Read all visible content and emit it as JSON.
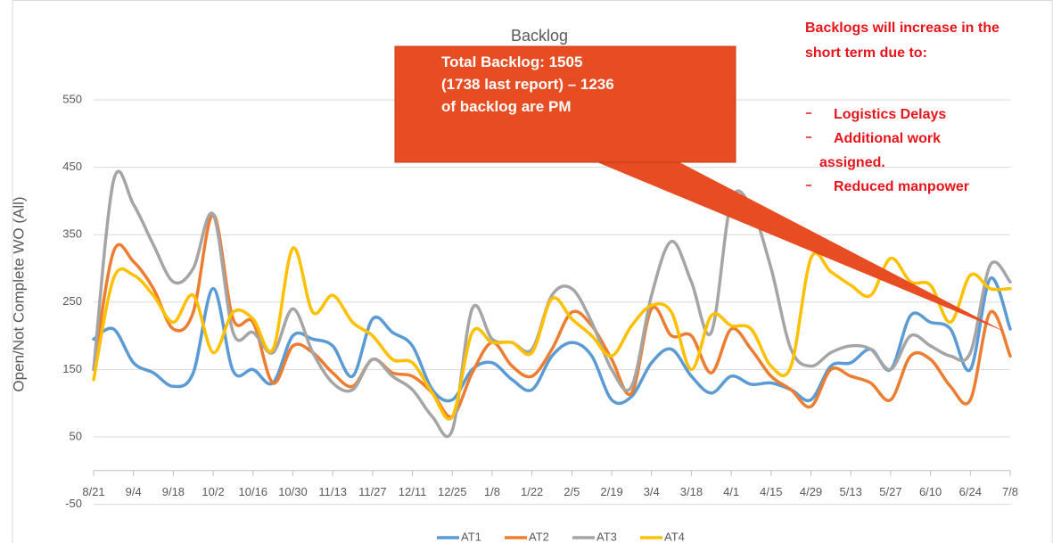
{
  "chart_data": {
    "type": "line",
    "title": "Backlog",
    "y_label": "Open/Not Complete WO (All)",
    "categories": [
      "8/21",
      null,
      "9/4",
      null,
      "9/18",
      null,
      "10/2",
      null,
      "10/16",
      null,
      "10/30",
      null,
      "11/13",
      null,
      "11/27",
      null,
      "12/11",
      null,
      "12/25",
      null,
      "1/8",
      null,
      "1/22",
      null,
      "2/5",
      null,
      "2/19",
      null,
      "3/4",
      null,
      "3/18",
      null,
      "4/1",
      null,
      "4/15",
      null,
      "4/29",
      null,
      "5/13",
      null,
      "5/27",
      null,
      "6/10",
      null,
      "6/24",
      null,
      "7/8"
    ],
    "series": [
      {
        "name": "AT1",
        "color": "#5b9bd5",
        "values": [
          195,
          210,
          160,
          145,
          125,
          145,
          270,
          148,
          150,
          130,
          200,
          195,
          185,
          140,
          225,
          205,
          185,
          120,
          105,
          150,
          160,
          135,
          120,
          170,
          190,
          170,
          105,
          110,
          160,
          180,
          140,
          115,
          140,
          128,
          130,
          120,
          105,
          155,
          160,
          180,
          150,
          230,
          220,
          210,
          150,
          285,
          210
        ]
      },
      {
        "name": "AT2",
        "color": "#ed7d31",
        "values": [
          150,
          325,
          310,
          270,
          210,
          235,
          380,
          225,
          220,
          130,
          185,
          175,
          145,
          125,
          165,
          145,
          140,
          115,
          80,
          145,
          190,
          155,
          140,
          180,
          235,
          215,
          165,
          115,
          240,
          200,
          200,
          145,
          210,
          180,
          140,
          120,
          95,
          150,
          140,
          130,
          105,
          170,
          165,
          125,
          105,
          235,
          170
        ]
      },
      {
        "name": "AT3",
        "color": "#a5a5a5",
        "values": [
          150,
          430,
          395,
          335,
          280,
          300,
          380,
          205,
          205,
          175,
          240,
          175,
          130,
          120,
          165,
          140,
          120,
          80,
          60,
          240,
          195,
          190,
          180,
          260,
          270,
          220,
          150,
          125,
          260,
          340,
          280,
          205,
          400,
          390,
          300,
          180,
          155,
          175,
          185,
          180,
          150,
          200,
          185,
          170,
          175,
          305,
          280
        ]
      },
      {
        "name": "AT4",
        "color": "#ffc000",
        "values": [
          135,
          285,
          290,
          260,
          220,
          260,
          175,
          235,
          225,
          180,
          330,
          235,
          260,
          220,
          200,
          165,
          160,
          115,
          80,
          205,
          190,
          190,
          175,
          255,
          225,
          200,
          170,
          215,
          245,
          235,
          150,
          230,
          215,
          210,
          155,
          155,
          315,
          295,
          275,
          260,
          315,
          280,
          275,
          220,
          290,
          270,
          270
        ]
      }
    ],
    "ylim": [
      -50,
      650
    ],
    "yticks": [
      -50,
      50,
      150,
      250,
      350,
      450,
      550
    ],
    "grid": true,
    "legend": "bottom",
    "annotations": {
      "callout": [
        "Total Backlog: 1505",
        "(1738 last report) – 1236",
        "of backlog are PM"
      ],
      "note": [
        "Backlogs will increase in the",
        "short term due to:"
      ],
      "note_items": [
        [
          "Logistics Delays"
        ],
        [
          "Additional work",
          "assigned."
        ],
        [
          "Reduced manpower"
        ]
      ]
    }
  }
}
